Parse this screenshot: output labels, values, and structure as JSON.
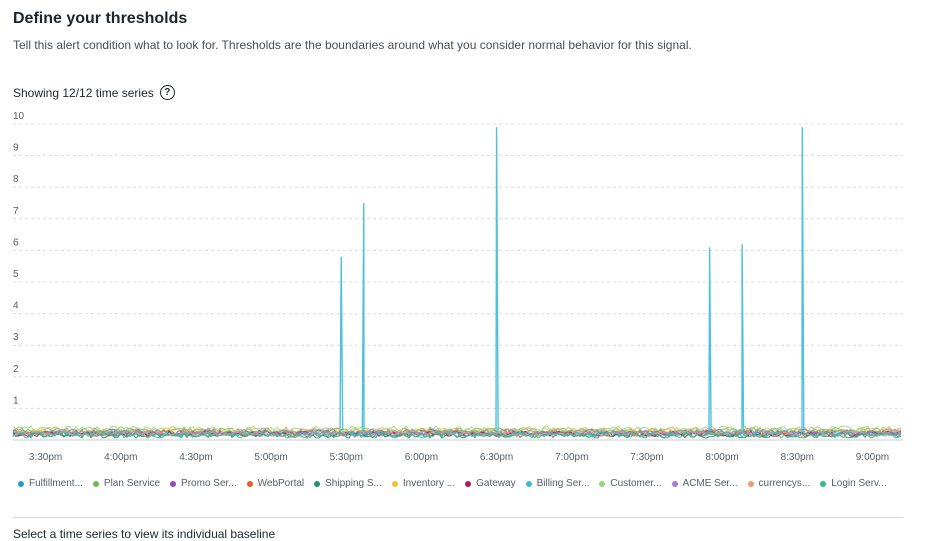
{
  "header": {
    "title": "Define your thresholds",
    "subtitle": "Tell this alert condition what to look for. Thresholds are the boundaries around what you consider normal behavior for this signal.",
    "showing": "Showing 12/12 time series",
    "help_icon": "question-circle-icon",
    "help_glyph": "?"
  },
  "chart_data": {
    "type": "line",
    "title": "",
    "xlabel": "",
    "ylabel": "",
    "ylim": [
      0,
      10
    ],
    "yticks": [
      1,
      2,
      3,
      4,
      5,
      6,
      7,
      8,
      9,
      10
    ],
    "xlim": [
      "3:15pm",
      "9:15pm"
    ],
    "xtick_labels": [
      "3:30pm",
      "4:00pm",
      "4:30pm",
      "5:00pm",
      "5:30pm",
      "6:00pm",
      "6:30pm",
      "7:00pm",
      "7:30pm",
      "8:00pm",
      "8:30pm",
      "9:00pm"
    ],
    "grid": "horizontal-dashed",
    "legend": "bottom",
    "series": [
      {
        "name": "Fulfillment...",
        "color": "#1aa3c9",
        "baseline": 0.2
      },
      {
        "name": "Plan Service",
        "color": "#6cc04a",
        "baseline": 0.3
      },
      {
        "name": "Promo Ser...",
        "color": "#8e4bc2",
        "baseline": 0.25
      },
      {
        "name": "WebPortal",
        "color": "#e8592c",
        "baseline": 0.2
      },
      {
        "name": "Shipping S...",
        "color": "#1f8f7a",
        "baseline": 0.15
      },
      {
        "name": "Inventory ...",
        "color": "#f2c12e",
        "baseline": 0.3
      },
      {
        "name": "Gateway",
        "color": "#b5175e",
        "baseline": 0.2
      },
      {
        "name": "Billing Ser...",
        "color": "#3cbad6",
        "baseline": 0.2,
        "spikes": [
          {
            "x": "5:28pm",
            "y": 5.8
          },
          {
            "x": "5:37pm",
            "y": 7.5
          },
          {
            "x": "6:30pm",
            "y": 9.9
          },
          {
            "x": "7:55pm",
            "y": 6.1
          },
          {
            "x": "8:08pm",
            "y": 6.2
          },
          {
            "x": "8:32pm",
            "y": 9.9
          }
        ]
      },
      {
        "name": "Customer...",
        "color": "#93d97a",
        "baseline": 0.35
      },
      {
        "name": "ACME Ser...",
        "color": "#a57bd6",
        "baseline": 0.25
      },
      {
        "name": "currencys...",
        "color": "#f09a6a",
        "baseline": 0.2
      },
      {
        "name": "Login Serv...",
        "color": "#2dbf87",
        "baseline": 0.15
      }
    ]
  },
  "footer": {
    "hint": "Select a time series to view its individual baseline"
  }
}
